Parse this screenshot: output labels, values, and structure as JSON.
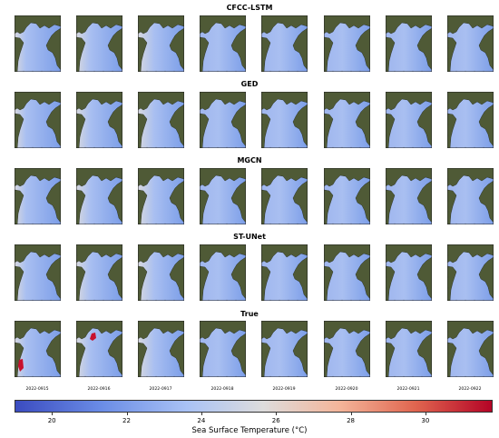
{
  "figure": {
    "rows": [
      {
        "title": "CFCC-LSTM"
      },
      {
        "title": "GED"
      },
      {
        "title": "MGCN"
      },
      {
        "title": "ST-UNet"
      },
      {
        "title": "True"
      }
    ],
    "dates": [
      "2022-0915",
      "2022-0916",
      "2022-0917",
      "2022-0918",
      "2022-0919",
      "2022-0920",
      "2022-0921",
      "2022-0922"
    ],
    "colorbar": {
      "label": "Sea Surface Temperature (°C)",
      "ticks": [
        "20",
        "22",
        "24",
        "26",
        "28",
        "30"
      ],
      "range": [
        19,
        31.8
      ],
      "colormap": "coolwarm"
    },
    "colors": {
      "land": "#4f5a36",
      "sea_base": "#7c9ee8",
      "sea_warm": "#d7d8de",
      "hotspot": "#c8102e"
    }
  }
}
